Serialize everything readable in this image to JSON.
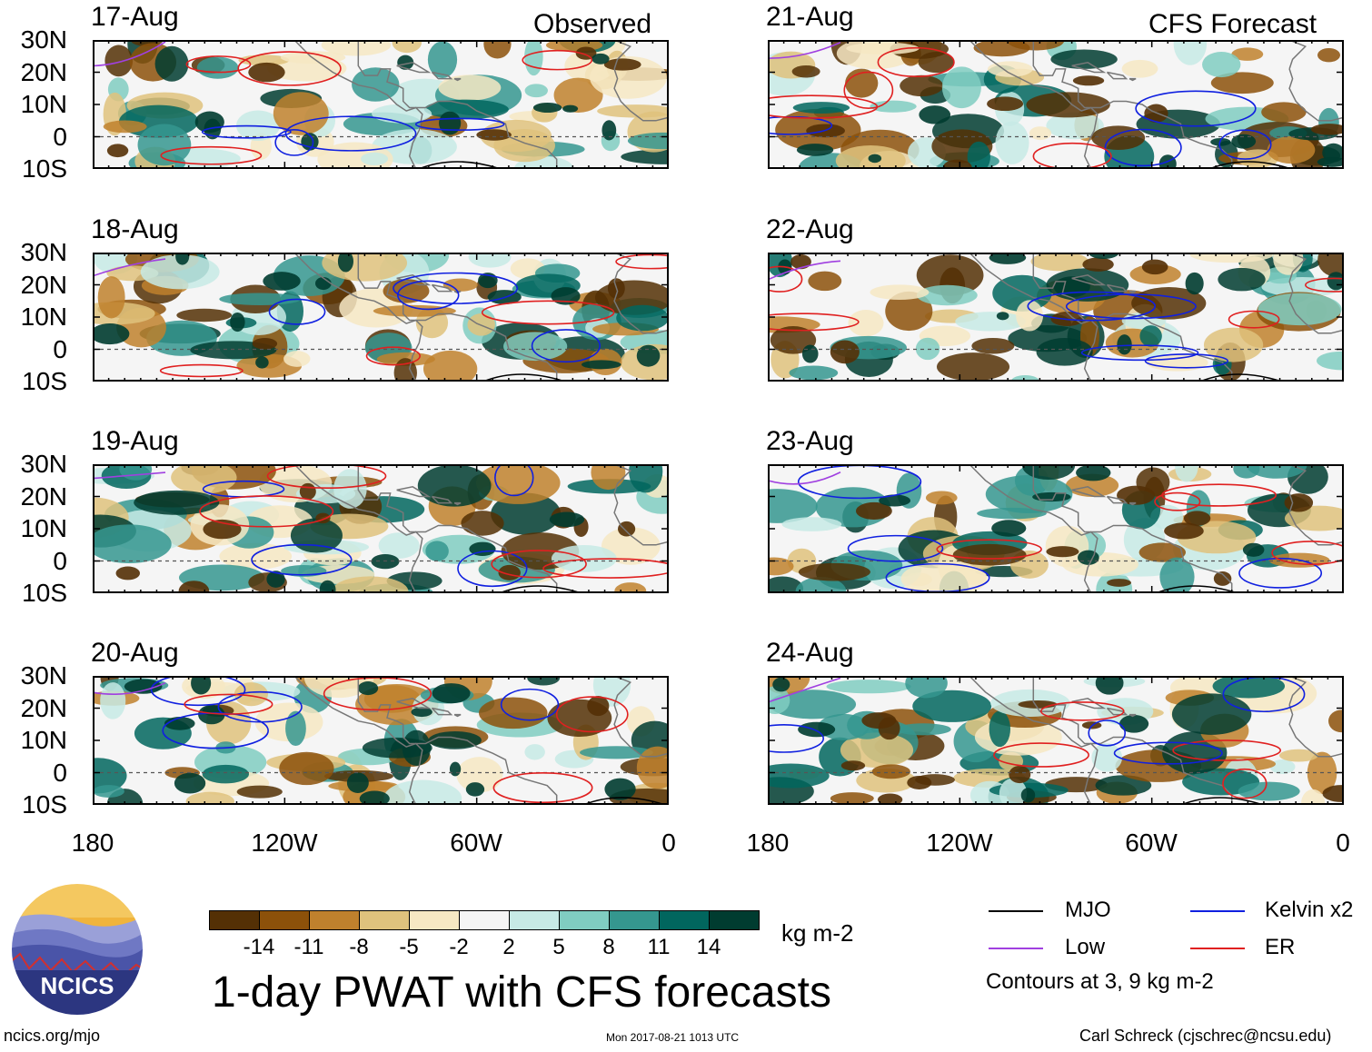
{
  "title": "1-day PWAT with CFS forecasts",
  "headings": {
    "observed": "Observed",
    "forecast": "CFS Forecast"
  },
  "panels": {
    "left": [
      {
        "date": "17-Aug"
      },
      {
        "date": "18-Aug"
      },
      {
        "date": "19-Aug"
      },
      {
        "date": "20-Aug"
      }
    ],
    "right": [
      {
        "date": "21-Aug"
      },
      {
        "date": "22-Aug"
      },
      {
        "date": "23-Aug"
      },
      {
        "date": "24-Aug"
      }
    ]
  },
  "lat_labels": [
    "30N",
    "20N",
    "10N",
    "0",
    "10S"
  ],
  "lon_labels": [
    "180",
    "120W",
    "60W",
    "0"
  ],
  "colorbar": {
    "units": "kg m-2",
    "ticks": [
      "-14",
      "-11",
      "-8",
      "-5",
      "-2",
      "2",
      "5",
      "8",
      "11",
      "14"
    ],
    "colors": [
      "#543005",
      "#8c510a",
      "#bf812d",
      "#dfc27d",
      "#f6e8c3",
      "#f5f5f5",
      "#c7eae5",
      "#80cdc1",
      "#35978f",
      "#01665e",
      "#003c30"
    ]
  },
  "legend": {
    "items": [
      {
        "label": "MJO",
        "color": "#000000"
      },
      {
        "label": "Kelvin x2",
        "color": "#1020e0"
      },
      {
        "label": "Low",
        "color": "#a040e0"
      },
      {
        "label": "ER",
        "color": "#e02020"
      }
    ],
    "note": "Contours at 3, 9 kg m-2"
  },
  "logo": {
    "text": "NCICS"
  },
  "footer": {
    "url": "ncics.org/mjo",
    "timestamp": "Mon 2017-08-21 1013 UTC",
    "author": "Carl Schreck (cjschrec@ncsu.edu)"
  }
}
